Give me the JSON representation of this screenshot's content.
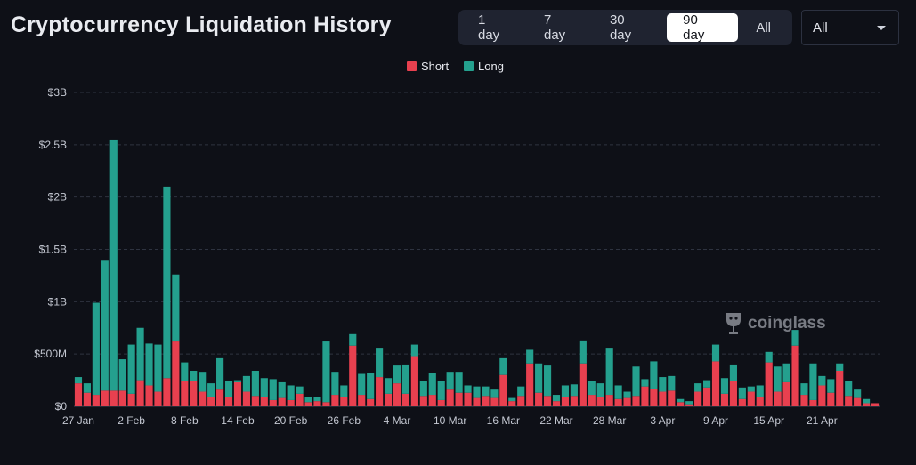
{
  "header": {
    "title": "Cryptocurrency Liquidation History"
  },
  "range_tabs": [
    {
      "label": "1 day",
      "active": false
    },
    {
      "label": "7 day",
      "active": false
    },
    {
      "label": "30 day",
      "active": false
    },
    {
      "label": "90 day",
      "active": true
    },
    {
      "label": "All",
      "active": false
    }
  ],
  "coin_select": {
    "value": "All"
  },
  "watermark": {
    "text": "coinglass"
  },
  "colors": {
    "short": "#e8404f",
    "long": "#24a08e",
    "grid": "#2e3340",
    "axis_text": "#c4c8d2"
  },
  "chart_data": {
    "type": "bar",
    "stacked": true,
    "title": "Cryptocurrency Liquidation History",
    "xlabel": "",
    "ylabel": "",
    "ylim": [
      0,
      3000
    ],
    "y_unit": "M USD",
    "y_ticks": [
      0,
      500,
      1000,
      1500,
      2000,
      2500,
      3000
    ],
    "y_tick_labels": [
      "$0",
      "$500M",
      "$1B",
      "$1.5B",
      "$2B",
      "$2.5B",
      "$3B"
    ],
    "x_tick_labels": [
      {
        "index": 0,
        "label": "27 Jan"
      },
      {
        "index": 6,
        "label": "2 Feb"
      },
      {
        "index": 12,
        "label": "8 Feb"
      },
      {
        "index": 18,
        "label": "14 Feb"
      },
      {
        "index": 24,
        "label": "20 Feb"
      },
      {
        "index": 30,
        "label": "26 Feb"
      },
      {
        "index": 36,
        "label": "4 Mar"
      },
      {
        "index": 42,
        "label": "10 Mar"
      },
      {
        "index": 48,
        "label": "16 Mar"
      },
      {
        "index": 54,
        "label": "22 Mar"
      },
      {
        "index": 60,
        "label": "28 Mar"
      },
      {
        "index": 66,
        "label": "3 Apr"
      },
      {
        "index": 72,
        "label": "9 Apr"
      },
      {
        "index": 78,
        "label": "15 Apr"
      },
      {
        "index": 84,
        "label": "21 Apr"
      }
    ],
    "legend": {
      "position": "top-center"
    },
    "series": [
      {
        "name": "Short",
        "color": "#e8404f",
        "values": [
          220,
          130,
          110,
          150,
          150,
          150,
          120,
          250,
          200,
          140,
          270,
          620,
          240,
          240,
          140,
          90,
          160,
          90,
          230,
          140,
          100,
          90,
          60,
          80,
          60,
          120,
          40,
          50,
          40,
          110,
          90,
          580,
          110,
          70,
          280,
          120,
          220,
          120,
          480,
          100,
          110,
          60,
          160,
          130,
          130,
          80,
          100,
          80,
          300,
          50,
          100,
          410,
          130,
          100,
          50,
          90,
          100,
          410,
          110,
          90,
          110,
          70,
          80,
          100,
          190,
          170,
          140,
          150,
          40,
          20,
          140,
          180,
          430,
          120,
          240,
          70,
          140,
          90,
          420,
          140,
          230,
          580,
          110,
          60,
          200,
          130,
          340,
          100,
          80,
          30,
          30
        ]
      },
      {
        "name": "Long",
        "color": "#24a08e",
        "values": [
          60,
          90,
          880,
          1250,
          2400,
          300,
          470,
          500,
          400,
          450,
          1830,
          640,
          180,
          100,
          190,
          130,
          300,
          150,
          20,
          150,
          240,
          180,
          200,
          150,
          140,
          70,
          50,
          40,
          580,
          220,
          110,
          110,
          200,
          250,
          280,
          150,
          170,
          280,
          110,
          140,
          210,
          180,
          170,
          200,
          70,
          110,
          90,
          80,
          160,
          30,
          90,
          130,
          280,
          290,
          60,
          110,
          110,
          220,
          130,
          130,
          450,
          130,
          60,
          280,
          70,
          260,
          140,
          140,
          30,
          30,
          80,
          70,
          160,
          150,
          160,
          110,
          50,
          110,
          100,
          240,
          180,
          150,
          110,
          350,
          90,
          130,
          70,
          140,
          80,
          40,
          0
        ]
      }
    ]
  }
}
